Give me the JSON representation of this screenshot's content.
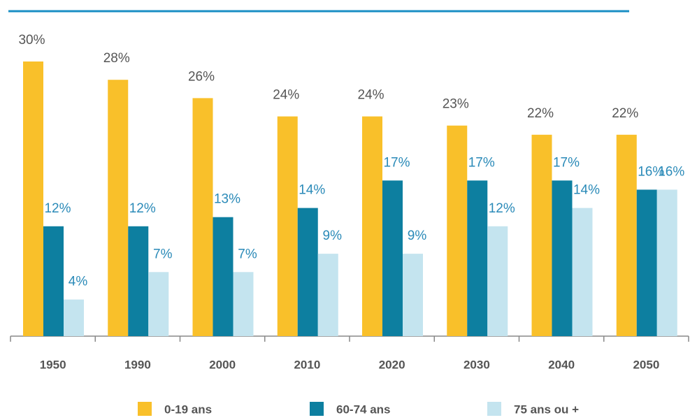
{
  "chart_data": {
    "type": "bar",
    "categories": [
      "1950",
      "1990",
      "2000",
      "2010",
      "2020",
      "2030",
      "2040",
      "2050"
    ],
    "series": [
      {
        "name": "0-19 ans",
        "color": "#f9c02a",
        "label_color": "#555555",
        "values": [
          30,
          28,
          26,
          24,
          24,
          23,
          22,
          22
        ],
        "value_labels": [
          "30%",
          "28%",
          "26%",
          "24%",
          "24%",
          "23%",
          "22%",
          "22%"
        ]
      },
      {
        "name": "60-74 ans",
        "color": "#0d7fa0",
        "label_color": "#2a8ab8",
        "values": [
          12,
          12,
          13,
          14,
          17,
          17,
          17,
          16
        ],
        "value_labels": [
          "12%",
          "12%",
          "13%",
          "14%",
          "17%",
          "17%",
          "17%",
          "16%"
        ]
      },
      {
        "name": "75 ans ou +",
        "color": "#c4e4ef",
        "label_color": "#2a8ab8",
        "values": [
          4,
          7,
          7,
          9,
          9,
          12,
          14,
          16
        ],
        "value_labels": [
          "4%",
          "7%",
          "7%",
          "9%",
          "9%",
          "12%",
          "14%",
          "16%"
        ]
      }
    ]
  }
}
